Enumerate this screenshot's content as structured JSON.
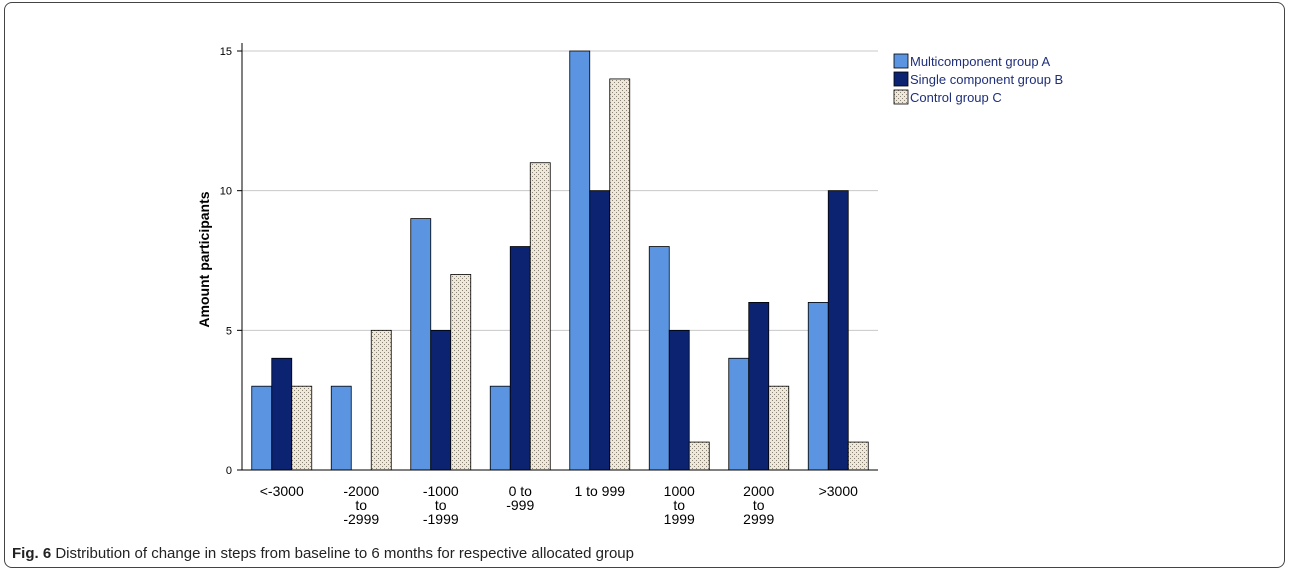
{
  "figure": {
    "label": "Fig. 6",
    "caption": "Distribution of change in steps from baseline to 6 months for respective allocated group"
  },
  "colors": {
    "series_a": "#5b94e0",
    "series_b": "#0b2370",
    "series_c": "#efe8d8",
    "grid": "#c8c8c8"
  },
  "chart_data": {
    "type": "bar",
    "title": "",
    "xlabel": "",
    "ylabel": "Amount participants",
    "ylim": [
      0,
      15
    ],
    "yticks": [
      0,
      5,
      10,
      15
    ],
    "grid": "horizontal",
    "legend_position": "top-right",
    "categories": [
      [
        "<-3000"
      ],
      [
        "-2000",
        "to",
        "-2999"
      ],
      [
        "-1000",
        "to",
        "-1999"
      ],
      [
        "0 to",
        "-999"
      ],
      [
        "1 to 999"
      ],
      [
        "1000",
        "to",
        "1999"
      ],
      [
        "2000",
        "to",
        "2999"
      ],
      [
        ">3000"
      ]
    ],
    "series": [
      {
        "name": "Multicomponent group A",
        "color": "#5b94e0",
        "pattern": "solid",
        "values": [
          3,
          3,
          9,
          3,
          15,
          8,
          4,
          6
        ]
      },
      {
        "name": "Single component group B",
        "color": "#0b2370",
        "pattern": "solid",
        "values": [
          4,
          0,
          5,
          8,
          10,
          5,
          6,
          10
        ]
      },
      {
        "name": "Control group C",
        "color": "#efe8d8",
        "pattern": "dotted",
        "values": [
          3,
          5,
          7,
          11,
          14,
          1,
          3,
          1
        ]
      }
    ]
  }
}
